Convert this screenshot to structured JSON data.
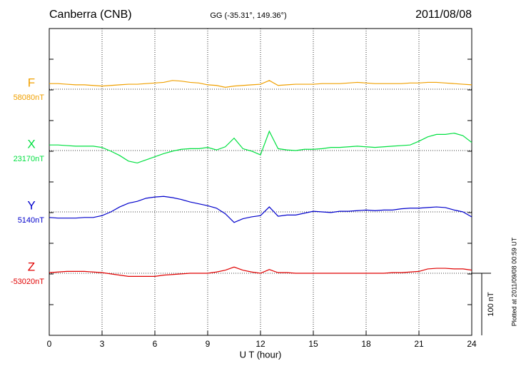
{
  "chart_data": {
    "type": "line",
    "title": "Canberra (CNB)",
    "subtitle": "GG (-35.31°, 149.36°)",
    "date": "2011/08/08",
    "x_label": "U T (hour)",
    "footnote": "Plotted at 2011/09/08 00:59 UT",
    "scale_bar": {
      "value": 100,
      "label": "100 nT"
    },
    "xlim": [
      0,
      24
    ],
    "xticks": [
      0,
      3,
      6,
      9,
      12,
      15,
      18,
      21,
      24
    ],
    "grid": true,
    "x": [
      0,
      0.5,
      1,
      1.5,
      2,
      2.5,
      3,
      3.5,
      4,
      4.5,
      5,
      5.5,
      6,
      6.5,
      7,
      7.5,
      8,
      8.5,
      9,
      9.5,
      10,
      10.5,
      11,
      11.5,
      12,
      12.5,
      13,
      13.5,
      14,
      14.5,
      15,
      15.5,
      16,
      16.5,
      17,
      17.5,
      18,
      18.5,
      19,
      19.5,
      20,
      20.5,
      21,
      21.5,
      22,
      22.5,
      23,
      23.5,
      24
    ],
    "series": [
      {
        "name": "F",
        "color": "#f0a000",
        "base": {
          "value": 58080,
          "label": "58080nT"
        },
        "values": [
          58089,
          58089,
          58088,
          58087,
          58087,
          58086,
          58085,
          58086,
          58087,
          58088,
          58088,
          58089,
          58090,
          58091,
          58094,
          58093,
          58091,
          58090,
          58087,
          58086,
          58083,
          58085,
          58086,
          58087,
          58088,
          58094,
          58086,
          58087,
          58088,
          58088,
          58088,
          58089,
          58089,
          58089,
          58090,
          58091,
          58090,
          58089,
          58089,
          58089,
          58089,
          58090,
          58090,
          58091,
          58091,
          58090,
          58089,
          58088,
          58087
        ]
      },
      {
        "name": "X",
        "color": "#00e040",
        "base": {
          "value": 23170,
          "label": "23170nT"
        },
        "values": [
          23179,
          23179,
          23178,
          23177,
          23177,
          23177,
          23175,
          23169,
          23162,
          23153,
          23150,
          23155,
          23160,
          23165,
          23169,
          23172,
          23173,
          23173,
          23175,
          23171,
          23176,
          23190,
          23173,
          23169,
          23163,
          23201,
          23173,
          23171,
          23170,
          23172,
          23172,
          23173,
          23175,
          23175,
          23176,
          23177,
          23176,
          23175,
          23176,
          23177,
          23178,
          23179,
          23185,
          23192,
          23196,
          23196,
          23198,
          23194,
          23183
        ]
      },
      {
        "name": "Y",
        "color": "#0000cc",
        "base": {
          "value": 5140,
          "label": "5140nT"
        },
        "values": [
          5131,
          5130,
          5130,
          5130,
          5131,
          5131,
          5134,
          5140,
          5148,
          5154,
          5157,
          5162,
          5164,
          5165,
          5163,
          5160,
          5156,
          5153,
          5150,
          5146,
          5137,
          5123,
          5129,
          5132,
          5134,
          5148,
          5133,
          5135,
          5135,
          5138,
          5141,
          5140,
          5139,
          5141,
          5141,
          5142,
          5143,
          5142,
          5143,
          5143,
          5145,
          5146,
          5146,
          5147,
          5148,
          5147,
          5143,
          5140,
          5132
        ]
      },
      {
        "name": "Z",
        "color": "#e00000",
        "base": {
          "value": -53020,
          "label": "-53020nT"
        },
        "values": [
          -53019,
          -53018,
          -53017,
          -53017,
          -53017,
          -53018,
          -53019,
          -53021,
          -53023,
          -53025,
          -53025,
          -53025,
          -53025,
          -53023,
          -53022,
          -53021,
          -53020,
          -53020,
          -53020,
          -53018,
          -53015,
          -53010,
          -53015,
          -53018,
          -53020,
          -53014,
          -53019,
          -53019,
          -53020,
          -53020,
          -53020,
          -53020,
          -53020,
          -53020,
          -53020,
          -53020,
          -53020,
          -53020,
          -53020,
          -53019,
          -53019,
          -53018,
          -53017,
          -53013,
          -53012,
          -53012,
          -53013,
          -53013,
          -53015
        ]
      }
    ]
  }
}
